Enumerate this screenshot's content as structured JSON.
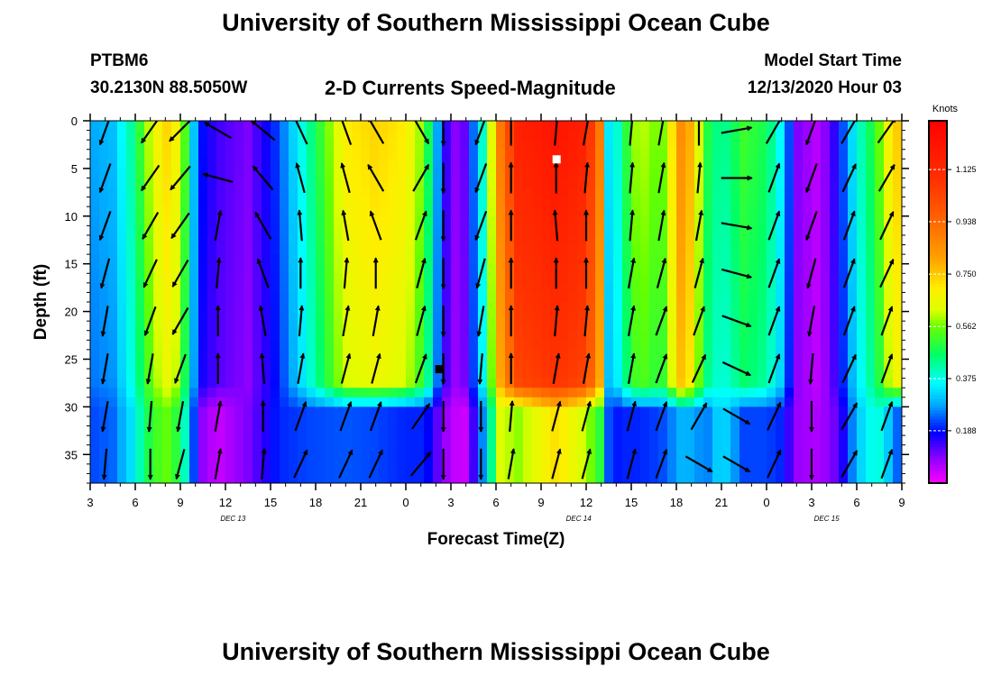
{
  "header": {
    "title_top": "University of Southern Mississippi Ocean Cube",
    "title_bottom": "University of Southern Mississippi Ocean Cube",
    "station": "PTBM6",
    "coords": "30.2130N 88.5050W",
    "model_label": "Model Start Time",
    "model_time": "12/13/2020 Hour 03"
  },
  "chart_data": {
    "type": "heatmap",
    "title": "2-D Currents Speed-Magnitude",
    "xlabel": "Forecast Time(Z)",
    "ylabel": "Depth (ft)",
    "x_tick_labels": [
      "3",
      "6",
      "9",
      "12",
      "15",
      "18",
      "21",
      "0",
      "3",
      "6",
      "9",
      "12",
      "15",
      "18",
      "21",
      "0",
      "3",
      "6",
      "9"
    ],
    "x_range_hours": [
      0,
      54
    ],
    "date_labels": [
      {
        "text": "DEC 13",
        "hour": 9.5
      },
      {
        "text": "DEC 14",
        "hour": 32.5
      },
      {
        "text": "DEC 15",
        "hour": 49
      }
    ],
    "y_ticks": [
      0,
      5,
      10,
      15,
      20,
      25,
      30,
      35
    ],
    "y_range_ft": [
      0,
      38
    ],
    "colorbar": {
      "label": "Knots",
      "min": 0.0,
      "max": 1.3,
      "tick_values": [
        1.125,
        0.938,
        0.75,
        0.562,
        0.375,
        0.188
      ],
      "tick_labels": [
        "1.125",
        "0.938",
        "0.750",
        "0.562",
        "0.375",
        "0.188"
      ]
    },
    "speed_profile": {
      "columns": [
        {
          "t": 0,
          "top": 0.28,
          "bot": 0.22
        },
        {
          "t": 1.5,
          "top": 0.3,
          "bot": 0.24
        },
        {
          "t": 2.7,
          "top": 0.42,
          "bot": 0.33
        },
        {
          "t": 4.0,
          "top": 0.62,
          "bot": 0.5
        },
        {
          "t": 5.0,
          "top": 0.74,
          "bot": 0.56
        },
        {
          "t": 6.0,
          "top": 0.66,
          "bot": 0.48
        },
        {
          "t": 6.7,
          "top": 0.38,
          "bot": 0.3
        },
        {
          "t": 7.2,
          "top": 0.2,
          "bot": 0.1
        },
        {
          "t": 8.5,
          "top": 0.14,
          "bot": 0.04
        },
        {
          "t": 10.5,
          "top": 0.1,
          "bot": 0.1
        },
        {
          "t": 12.5,
          "top": 0.22,
          "bot": 0.2
        },
        {
          "t": 14.5,
          "top": 0.42,
          "bot": 0.22
        },
        {
          "t": 17.0,
          "top": 0.7,
          "bot": 0.23
        },
        {
          "t": 19.0,
          "top": 0.74,
          "bot": 0.22
        },
        {
          "t": 21.0,
          "top": 0.7,
          "bot": 0.2
        },
        {
          "t": 22.3,
          "top": 0.55,
          "bot": 0.2
        },
        {
          "t": 23.1,
          "top": 0.28,
          "bot": 0.12
        },
        {
          "t": 24.0,
          "top": 0.08,
          "bot": 0.05
        },
        {
          "t": 25.0,
          "top": 0.12,
          "bot": 0.04
        },
        {
          "t": 26.2,
          "top": 0.42,
          "bot": 0.28
        },
        {
          "t": 27.3,
          "top": 0.9,
          "bot": 0.62
        },
        {
          "t": 28.5,
          "top": 1.16,
          "bot": 0.58
        },
        {
          "t": 31.0,
          "top": 1.22,
          "bot": 0.72
        },
        {
          "t": 33.0,
          "top": 1.16,
          "bot": 0.6
        },
        {
          "t": 33.9,
          "top": 0.9,
          "bot": 0.5
        },
        {
          "t": 34.6,
          "top": 0.25,
          "bot": 0.18
        },
        {
          "t": 35.3,
          "top": 0.45,
          "bot": 0.2
        },
        {
          "t": 36.5,
          "top": 0.62,
          "bot": 0.2
        },
        {
          "t": 38.0,
          "top": 0.55,
          "bot": 0.22
        },
        {
          "t": 39.5,
          "top": 0.9,
          "bot": 0.3
        },
        {
          "t": 41.0,
          "top": 0.5,
          "bot": 0.25
        },
        {
          "t": 42.0,
          "top": 0.42,
          "bot": 0.34
        },
        {
          "t": 43.5,
          "top": 0.52,
          "bot": 0.22
        },
        {
          "t": 45.0,
          "top": 0.48,
          "bot": 0.22
        },
        {
          "t": 46.0,
          "top": 0.35,
          "bot": 0.2
        },
        {
          "t": 47.0,
          "top": 0.1,
          "bot": 0.08
        },
        {
          "t": 48.5,
          "top": 0.05,
          "bot": 0.06
        },
        {
          "t": 49.8,
          "top": 0.18,
          "bot": 0.12
        },
        {
          "t": 51.0,
          "top": 0.38,
          "bot": 0.3
        },
        {
          "t": 52.3,
          "top": 0.52,
          "bot": 0.4
        },
        {
          "t": 53.2,
          "top": 0.7,
          "bot": 0.3
        },
        {
          "t": 54.0,
          "top": 0.78,
          "bot": 0.2
        }
      ],
      "mixed_layer_depth_ft": 29
    },
    "arrow_times_hours": [
      1,
      4,
      6,
      8.5,
      11.5,
      14,
      17,
      19,
      22,
      23.5,
      26,
      28,
      31,
      33,
      36,
      38,
      40.5,
      43,
      45.5,
      48,
      50.5,
      53
    ],
    "arrow_depths_ft": [
      1,
      6,
      11,
      16,
      21,
      26,
      31,
      36
    ],
    "arrow_direction_deg": [
      [
        200,
        200,
        200,
        195,
        190,
        190,
        190,
        185
      ],
      [
        215,
        215,
        210,
        205,
        200,
        190,
        185,
        180
      ],
      [
        225,
        220,
        215,
        210,
        210,
        200,
        190,
        195
      ],
      [
        300,
        285,
        10,
        5,
        0,
        0,
        10,
        10
      ],
      [
        310,
        320,
        330,
        340,
        350,
        355,
        0,
        5
      ],
      [
        335,
        345,
        355,
        0,
        5,
        10,
        20,
        25
      ],
      [
        340,
        345,
        350,
        5,
        10,
        15,
        20,
        25
      ],
      [
        330,
        330,
        340,
        0,
        10,
        15,
        20,
        25
      ],
      [
        150,
        30,
        20,
        15,
        15,
        20,
        35,
        40
      ],
      [
        180,
        180,
        180,
        180,
        180,
        180,
        180,
        180
      ],
      [
        200,
        200,
        200,
        195,
        190,
        185,
        180,
        180
      ],
      [
        0,
        0,
        0,
        0,
        0,
        0,
        5,
        10
      ],
      [
        5,
        0,
        355,
        0,
        5,
        10,
        15,
        15
      ],
      [
        10,
        5,
        0,
        0,
        5,
        10,
        15,
        15
      ],
      [
        5,
        5,
        5,
        10,
        10,
        10,
        15,
        15
      ],
      [
        10,
        10,
        10,
        15,
        20,
        20,
        20,
        20
      ],
      [
        0,
        5,
        10,
        15,
        20,
        25,
        30,
        120
      ],
      [
        80,
        90,
        100,
        105,
        110,
        115,
        120,
        120
      ],
      [
        30,
        20,
        20,
        20,
        20,
        20,
        25,
        25
      ],
      [
        200,
        200,
        200,
        195,
        190,
        185,
        180,
        180
      ],
      [
        30,
        25,
        20,
        20,
        20,
        25,
        30,
        30
      ],
      [
        35,
        30,
        25,
        25,
        20,
        20,
        20,
        20
      ]
    ],
    "markers": [
      {
        "hour": 31,
        "depth_ft": 4,
        "color": "#ffffff"
      },
      {
        "hour": 23.2,
        "depth_ft": 26,
        "color": "#000000"
      }
    ]
  }
}
